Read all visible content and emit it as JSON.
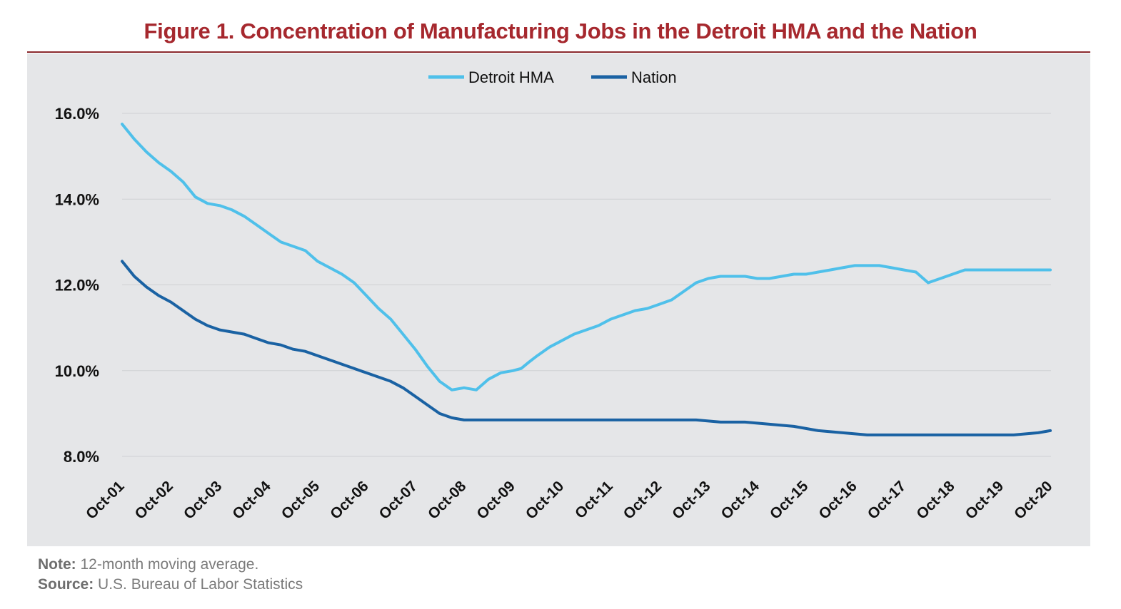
{
  "figure": {
    "title": "Figure 1. Concentration of Manufacturing Jobs in the Detroit HMA and the Nation",
    "note_label": "Note:",
    "note_text": " 12-month moving average.",
    "source_label": "Source:",
    "source_text": " U.S. Bureau of Labor Statistics"
  },
  "colors": {
    "title": "#a6282e",
    "panel_background": "#e5e6e8",
    "detroit": "#4fc0ea",
    "nation": "#1a62a3",
    "gridline": "#cfd0d3"
  },
  "chart_data": {
    "type": "line",
    "title": "Figure 1. Concentration of Manufacturing Jobs in the Detroit HMA and the Nation",
    "xlabel": "",
    "ylabel": "",
    "x_tick_labels": [
      "Oct-01",
      "Oct-02",
      "Oct-03",
      "Oct-04",
      "Oct-05",
      "Oct-06",
      "Oct-07",
      "Oct-08",
      "Oct-09",
      "Oct-10",
      "Oct-11",
      "Oct-12",
      "Oct-13",
      "Oct-14",
      "Oct-15",
      "Oct-16",
      "Oct-17",
      "Oct-18",
      "Oct-19",
      "Oct-20"
    ],
    "y_tick_labels": [
      "8.0%",
      "10.0%",
      "12.0%",
      "14.0%",
      "16.0%"
    ],
    "y_ticks": [
      8,
      10,
      12,
      14,
      16
    ],
    "ylim": [
      8,
      16
    ],
    "grid": true,
    "legend_position": "top-center",
    "series": [
      {
        "name": "Detroit HMA",
        "color": "#4fc0ea",
        "x": [
          2001.75,
          2002.0,
          2002.25,
          2002.5,
          2002.75,
          2003.0,
          2003.25,
          2003.5,
          2003.75,
          2004.0,
          2004.25,
          2004.5,
          2004.75,
          2005.0,
          2005.25,
          2005.5,
          2005.75,
          2006.0,
          2006.25,
          2006.5,
          2006.75,
          2007.0,
          2007.25,
          2007.5,
          2007.75,
          2008.0,
          2008.25,
          2008.5,
          2008.75,
          2009.0,
          2009.25,
          2009.5,
          2009.75,
          2009.92,
          2010.08,
          2010.25,
          2010.5,
          2010.75,
          2011.0,
          2011.25,
          2011.5,
          2011.75,
          2012.0,
          2012.25,
          2012.5,
          2012.75,
          2013.0,
          2013.25,
          2013.5,
          2013.75,
          2014.0,
          2014.25,
          2014.5,
          2014.75,
          2015.0,
          2015.25,
          2015.5,
          2015.75,
          2016.0,
          2016.25,
          2016.5,
          2016.75,
          2017.0,
          2017.25,
          2017.5,
          2017.75,
          2018.0,
          2018.25,
          2018.5,
          2018.75,
          2019.0,
          2019.25,
          2019.5,
          2019.67,
          2019.83,
          2020.0,
          2020.25,
          2020.5,
          2020.75
        ],
        "values": [
          15.75,
          15.4,
          15.1,
          14.85,
          14.65,
          14.4,
          14.05,
          13.9,
          13.85,
          13.75,
          13.6,
          13.4,
          13.2,
          13.0,
          12.9,
          12.8,
          12.55,
          12.4,
          12.25,
          12.05,
          11.75,
          11.45,
          11.2,
          10.85,
          10.5,
          10.1,
          9.75,
          9.55,
          9.6,
          9.55,
          9.8,
          9.95,
          10.0,
          10.05,
          10.2,
          10.35,
          10.55,
          10.7,
          10.85,
          10.95,
          11.05,
          11.2,
          11.3,
          11.4,
          11.45,
          11.55,
          11.65,
          11.85,
          12.05,
          12.15,
          12.2,
          12.2,
          12.2,
          12.15,
          12.15,
          12.2,
          12.25,
          12.25,
          12.3,
          12.35,
          12.4,
          12.45,
          12.45,
          12.45,
          12.4,
          12.35,
          12.3,
          12.05,
          12.15,
          12.25,
          12.35,
          12.35,
          12.35,
          12.35,
          12.35,
          12.35,
          12.35,
          12.35,
          12.35
        ]
      },
      {
        "name": "Nation",
        "color": "#1a62a3",
        "x": [
          2001.75,
          2002.0,
          2002.25,
          2002.5,
          2002.75,
          2003.0,
          2003.25,
          2003.5,
          2003.75,
          2004.0,
          2004.25,
          2004.5,
          2004.75,
          2005.0,
          2005.25,
          2005.5,
          2005.75,
          2006.0,
          2006.25,
          2006.5,
          2006.75,
          2007.0,
          2007.25,
          2007.5,
          2007.75,
          2008.0,
          2008.25,
          2008.5,
          2008.75,
          2009.0,
          2009.25,
          2009.5,
          2009.75,
          2010.0,
          2010.25,
          2010.5,
          2010.75,
          2011.0,
          2011.5,
          2012.0,
          2012.5,
          2013.0,
          2013.5,
          2014.0,
          2014.5,
          2015.0,
          2015.5,
          2016.0,
          2016.5,
          2017.0,
          2017.5,
          2018.0,
          2018.5,
          2019.0,
          2019.5,
          2020.0,
          2020.5,
          2020.75
        ],
        "values": [
          12.55,
          12.2,
          11.95,
          11.75,
          11.6,
          11.4,
          11.2,
          11.05,
          10.95,
          10.9,
          10.85,
          10.75,
          10.65,
          10.6,
          10.5,
          10.45,
          10.35,
          10.25,
          10.15,
          10.05,
          9.95,
          9.85,
          9.75,
          9.6,
          9.4,
          9.2,
          9.0,
          8.9,
          8.85,
          8.85,
          8.85,
          8.85,
          8.85,
          8.85,
          8.85,
          8.85,
          8.85,
          8.85,
          8.85,
          8.85,
          8.85,
          8.85,
          8.85,
          8.8,
          8.8,
          8.75,
          8.7,
          8.6,
          8.55,
          8.5,
          8.5,
          8.5,
          8.5,
          8.5,
          8.5,
          8.5,
          8.55,
          8.6
        ]
      }
    ]
  }
}
